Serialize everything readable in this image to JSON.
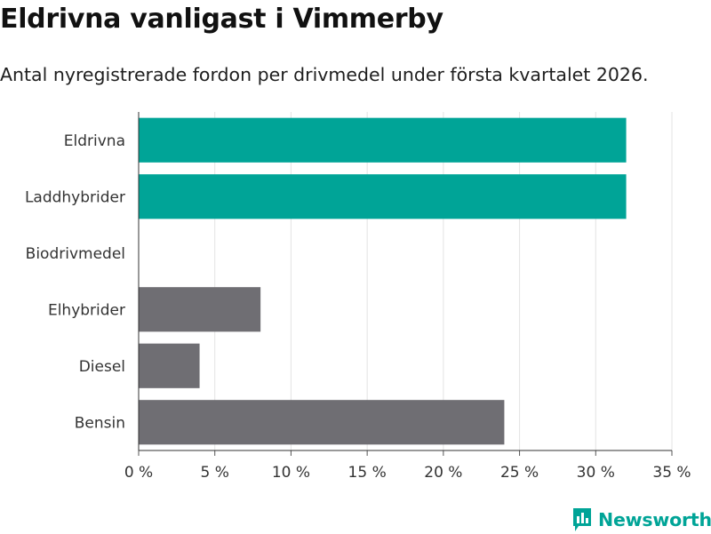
{
  "header": {
    "title": "Eldrivna vanligast i Vimmerby",
    "subtitle": "Antal nyregistrerade fordon per drivmedel under första kvartalet 2026."
  },
  "colors": {
    "highlight": "#00a497",
    "default": "#6f6e73",
    "grid": "#e3e3e3",
    "brand": "#00a497"
  },
  "chart_data": {
    "type": "bar",
    "orientation": "horizontal",
    "title": "Eldrivna vanligast i Vimmerby",
    "subtitle": "Antal nyregistrerade fordon per drivmedel under första kvartalet 2026.",
    "categories": [
      "Eldrivna",
      "Laddhybrider",
      "Biodrivmedel",
      "Elhybrider",
      "Diesel",
      "Bensin"
    ],
    "values": [
      32,
      32,
      0,
      8,
      4,
      24
    ],
    "highlighted": [
      true,
      true,
      true,
      false,
      false,
      false
    ],
    "unit": "%",
    "xlim": [
      0,
      35
    ],
    "xticks": [
      0,
      5,
      10,
      15,
      20,
      25,
      30,
      35
    ],
    "xtick_labels": [
      "0 %",
      "5 %",
      "10 %",
      "15 %",
      "20 %",
      "25 %",
      "30 %",
      "35 %"
    ],
    "grid": "vertical",
    "legend": "none"
  },
  "footer": {
    "brand": "Newsworthy",
    "brand_icon": "bar-chart-logo-icon"
  }
}
